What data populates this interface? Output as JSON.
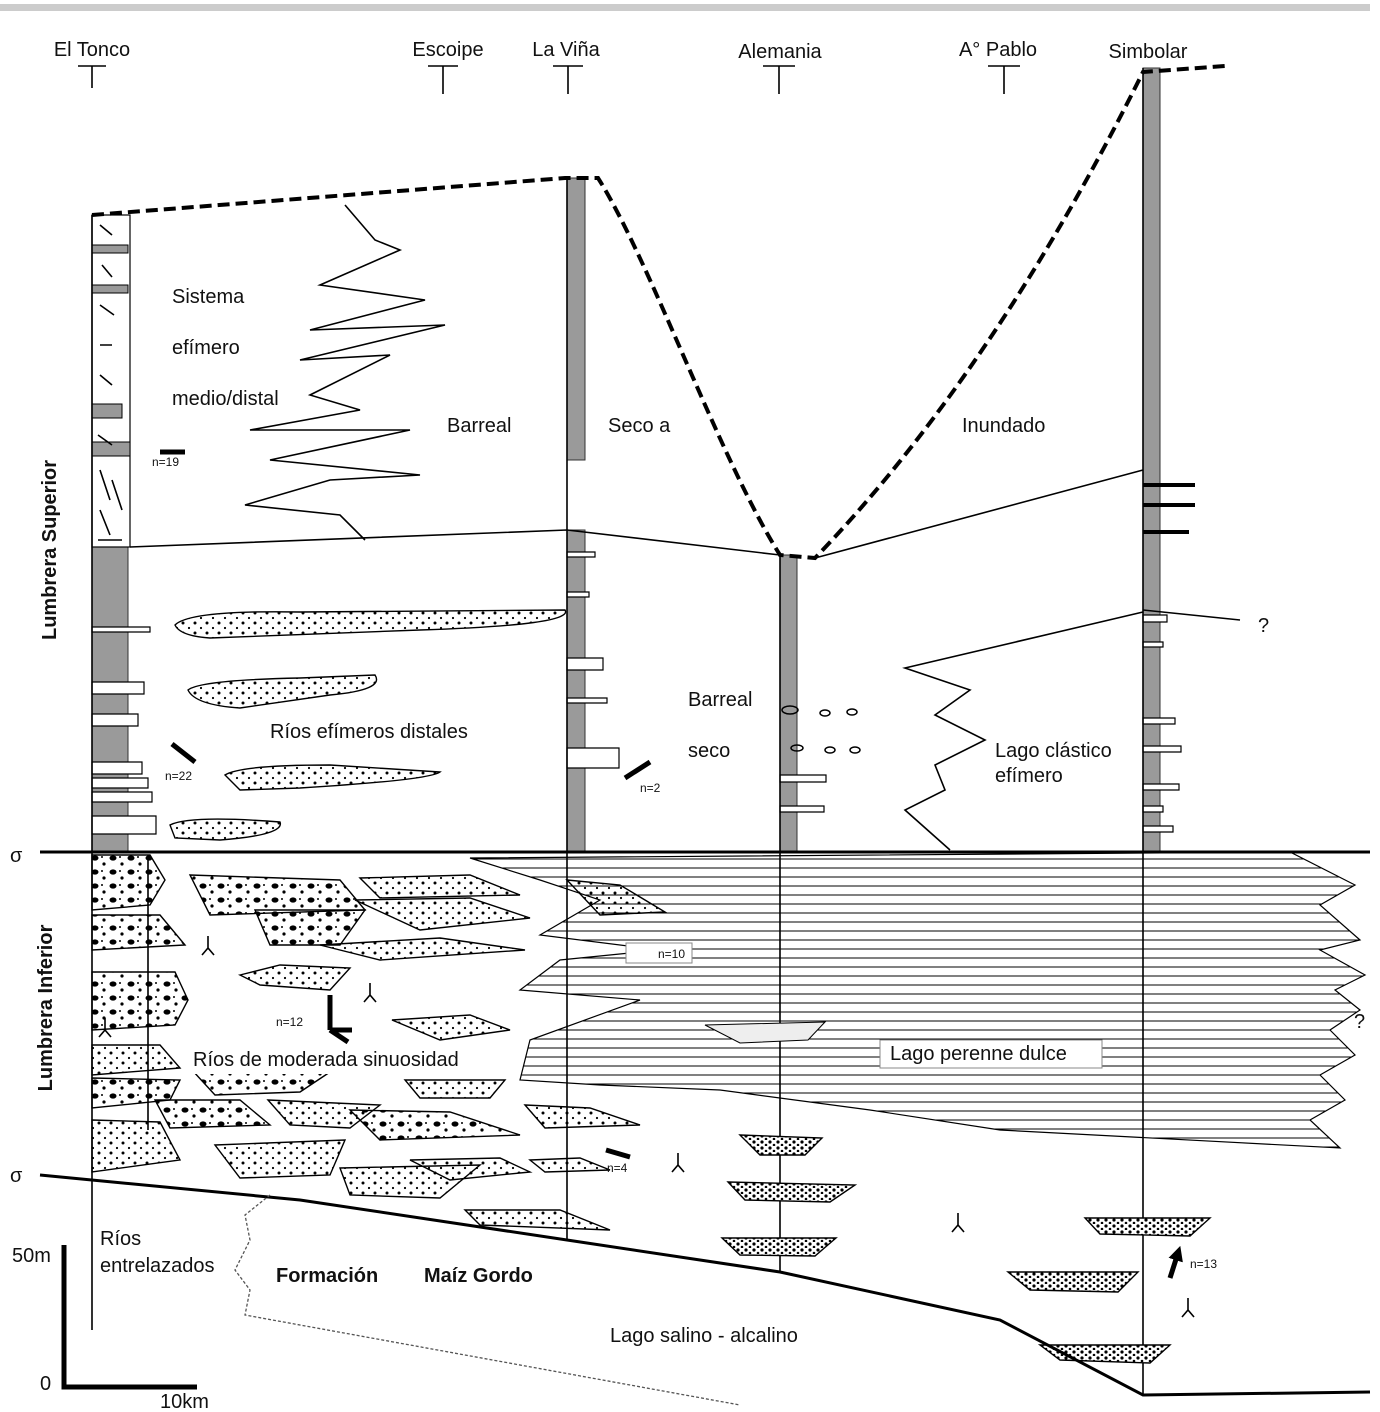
{
  "sections": [
    "El Tonco",
    "Escoipe",
    "La Viña",
    "Alemania",
    "A° Pablo",
    "Simbolar"
  ],
  "units": [
    "Lumbrera Superior",
    "Lumbrera Inferior"
  ],
  "boundaries": [
    "σ",
    "σ"
  ],
  "facies": [
    [
      "Sistema",
      "efímero",
      "medio/distal"
    ],
    [
      "Barreal"
    ],
    [
      "Seco a"
    ],
    [
      "Inundado"
    ],
    [
      "Ríos efímeros distales"
    ],
    [
      "Barreal",
      "seco"
    ],
    [
      "Lago clástico",
      "efímero"
    ],
    [
      "Ríos de moderada sinuosidad"
    ],
    [
      "Lago perenne dulce"
    ],
    [
      "Ríos",
      "entrelazados"
    ],
    [
      "Formación",
      "Maíz Gordo"
    ],
    [
      "Lago salino - alcalino"
    ]
  ],
  "paleocurrents": [
    "n=19",
    "n=22",
    "n=2",
    "n=10",
    "n=12",
    "n=4",
    "n=13"
  ],
  "uncertain": [
    "?",
    "?"
  ],
  "scale": {
    "vertical_top": "50m",
    "vertical_bottom": "0",
    "horizontal": "10km"
  }
}
